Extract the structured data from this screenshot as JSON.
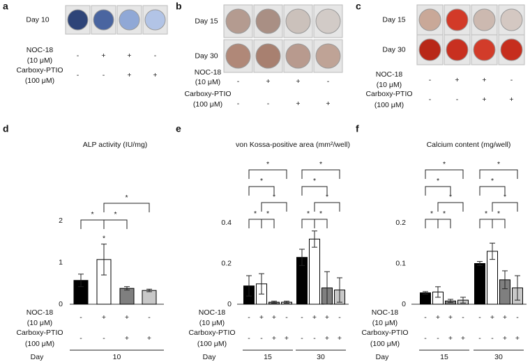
{
  "image_panels": [
    {
      "letter": "a",
      "days": [
        "Day 10"
      ],
      "conditions": [
        {
          "label": [
            "NOC-18",
            "(10 μM)"
          ],
          "signs": [
            "-",
            "+",
            "+",
            "-"
          ]
        },
        {
          "label": [
            "Carboxy-PTIO",
            "(100 μM)"
          ],
          "signs": [
            "-",
            "-",
            "+",
            "+"
          ]
        }
      ]
    },
    {
      "letter": "b",
      "days": [
        "Day 15",
        "Day 30"
      ],
      "conditions": [
        {
          "label": [
            "NOC-18",
            "(10 μM)"
          ],
          "signs": [
            "-",
            "+",
            "+",
            "-"
          ]
        },
        {
          "label": [
            "Carboxy-PTIO",
            "(100 μM)"
          ],
          "signs": [
            "-",
            "-",
            "+",
            "+"
          ]
        }
      ]
    },
    {
      "letter": "c",
      "days": [
        "Day 15",
        "Day 30"
      ],
      "conditions": [
        {
          "label": [
            "NOC-18",
            "(10 μM)"
          ],
          "signs": [
            "-",
            "+",
            "+",
            "-"
          ]
        },
        {
          "label": [
            "Carboxy-PTIO",
            "(100 μM)"
          ],
          "signs": [
            "-",
            "-",
            "+",
            "+"
          ]
        }
      ]
    }
  ],
  "chart_data": [
    {
      "type": "bar",
      "letter": "d",
      "title": "ALP activity (IU/mg)",
      "ylim": [
        0,
        2
      ],
      "yticks": [
        0,
        1,
        2
      ],
      "values": [
        0.57,
        1.07,
        0.38,
        0.33
      ],
      "errors": [
        0.15,
        0.37,
        0.04,
        0.03
      ],
      "colors": [
        "#000000",
        "#ffffff",
        "#7f7f7f",
        "#c8c8c8"
      ],
      "value_stars": [
        {
          "bar": 1,
          "label": "*"
        }
      ],
      "brackets": [
        {
          "from": 0,
          "to": 1,
          "label": "*"
        },
        {
          "from": 1,
          "to": 2,
          "label": "*"
        },
        {
          "from": 1,
          "to": 3,
          "label": "*"
        }
      ],
      "conditions": [
        {
          "label": [
            "NOC-18",
            "(10 μM)"
          ],
          "signs": [
            "-",
            "+",
            "+",
            "-"
          ]
        },
        {
          "label": [
            "Carboxy-PTIO",
            "(100 μM)"
          ],
          "signs": [
            "-",
            "-",
            "+",
            "+"
          ]
        }
      ],
      "day_label": "Day",
      "groups": [
        "10"
      ]
    },
    {
      "type": "bar",
      "letter": "e",
      "title": "von Kossa-positive area (mm²/well)",
      "ylim": [
        0,
        0.4
      ],
      "yticks": [
        0,
        0.2,
        0.4
      ],
      "values": [
        0.09,
        0.1,
        0.01,
        0.01,
        0.23,
        0.32,
        0.08,
        0.07
      ],
      "errors": [
        0.05,
        0.05,
        0.005,
        0.005,
        0.04,
        0.04,
        0.08,
        0.06
      ],
      "colors": [
        "#000000",
        "#ffffff",
        "#7f7f7f",
        "#c8c8c8"
      ],
      "brackets": [
        {
          "from": 0,
          "to": 1,
          "label": "*"
        },
        {
          "from": 1,
          "to": 2,
          "label": "*"
        },
        {
          "from": 1,
          "to": 3,
          "label": "*"
        },
        {
          "from": 0,
          "to": 2,
          "label": "*"
        },
        {
          "from": 0,
          "to": 3,
          "label": "*"
        },
        {
          "from": 4,
          "to": 5,
          "label": "*"
        },
        {
          "from": 5,
          "to": 6,
          "label": "*"
        },
        {
          "from": 5,
          "to": 7,
          "label": "*"
        },
        {
          "from": 4,
          "to": 6,
          "label": "*"
        },
        {
          "from": 4,
          "to": 7,
          "label": "*"
        }
      ],
      "conditions": [
        {
          "label": [
            "NOC-18",
            "(10 μM)"
          ],
          "signs": [
            "-",
            "+",
            "+",
            "-",
            "-",
            "+",
            "+",
            "-"
          ]
        },
        {
          "label": [
            "Carboxy-PTIO",
            "(100 μM)"
          ],
          "signs": [
            "-",
            "-",
            "+",
            "+",
            "-",
            "-",
            "+",
            "+"
          ]
        }
      ],
      "day_label": "Day",
      "groups": [
        "15",
        "30"
      ]
    },
    {
      "type": "bar",
      "letter": "f",
      "title": "Calcium content (mg/well)",
      "ylim": [
        0,
        0.2
      ],
      "yticks": [
        0,
        0.1,
        0.2
      ],
      "values": [
        0.028,
        0.03,
        0.008,
        0.01,
        0.1,
        0.13,
        0.06,
        0.04
      ],
      "errors": [
        0.003,
        0.013,
        0.004,
        0.007,
        0.005,
        0.02,
        0.022,
        0.03
      ],
      "colors": [
        "#000000",
        "#ffffff",
        "#7f7f7f",
        "#c8c8c8"
      ],
      "brackets": [
        {
          "from": 0,
          "to": 1,
          "label": "*"
        },
        {
          "from": 1,
          "to": 2,
          "label": "*"
        },
        {
          "from": 1,
          "to": 3,
          "label": "*"
        },
        {
          "from": 0,
          "to": 2,
          "label": "*"
        },
        {
          "from": 0,
          "to": 3,
          "label": "*"
        },
        {
          "from": 4,
          "to": 5,
          "label": "*"
        },
        {
          "from": 5,
          "to": 6,
          "label": "*"
        },
        {
          "from": 5,
          "to": 7,
          "label": "*"
        },
        {
          "from": 4,
          "to": 6,
          "label": "*"
        },
        {
          "from": 4,
          "to": 7,
          "label": "*"
        }
      ],
      "conditions": [
        {
          "label": [
            "NOC-18",
            "(10 μM)"
          ],
          "signs": [
            "-",
            "+",
            "+",
            "-",
            "-",
            "+",
            "+",
            "-"
          ]
        },
        {
          "label": [
            "Carboxy-PTIO",
            "(100 μM)"
          ],
          "signs": [
            "-",
            "-",
            "+",
            "+",
            "-",
            "-",
            "+",
            "+"
          ]
        }
      ],
      "day_label": "Day",
      "groups": [
        "15",
        "30"
      ]
    }
  ]
}
